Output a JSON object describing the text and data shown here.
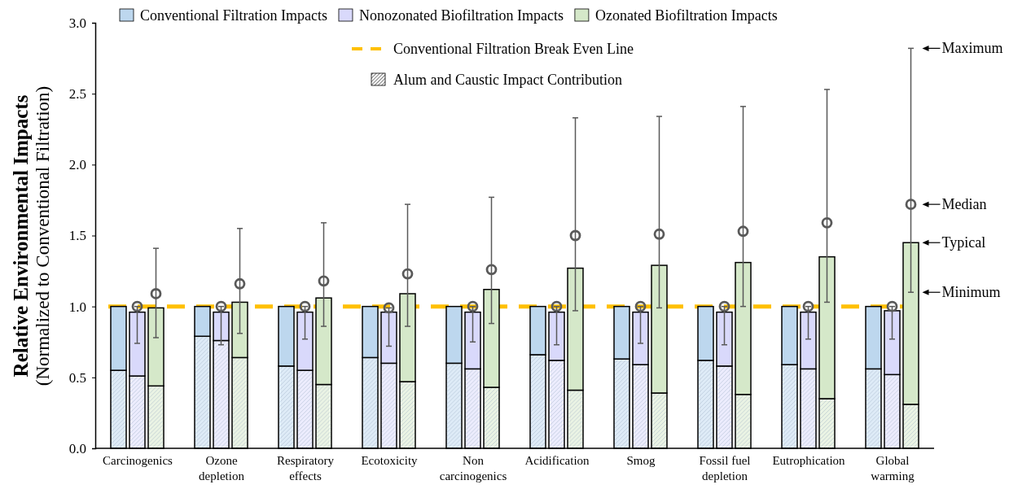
{
  "chart_data": {
    "type": "bar",
    "stacked": true,
    "ylabel": "Relative Environmental Impacts\n(Normalized to Conventional Filtration)",
    "categories": [
      null,
      "Carcinogenics",
      null,
      null,
      "Ozone depletion",
      null,
      null,
      "Respiratory effects",
      null,
      null,
      "Ecotoxicity",
      null,
      null,
      "Non carcinogenics",
      null,
      null,
      "Acidification",
      null,
      null,
      "Smog",
      null,
      null,
      "Fossil fuel depletion",
      null,
      null,
      "Eutrophication",
      null,
      null,
      "Global warming",
      null
    ],
    "ylim": [
      0,
      3
    ],
    "yticks": [
      {
        "value": 0,
        "label": "0.0"
      },
      {
        "value": 0.5,
        "label": "0.5"
      },
      {
        "value": 1,
        "label": "1.0"
      },
      {
        "value": 1.5,
        "label": "1.5"
      },
      {
        "value": 2,
        "label": "2.0"
      },
      {
        "value": 2.5,
        "label": "2.5"
      },
      {
        "value": 3,
        "label": "3.0"
      }
    ],
    "legend": "top",
    "series": [
      {
        "color": "#deebf7",
        "values": [
          0.55,
          null,
          null,
          0.79,
          null,
          null,
          0.58,
          null,
          null,
          0.64,
          null,
          null,
          0.6,
          null,
          null,
          0.66,
          null,
          null,
          0.63,
          null,
          null,
          0.62,
          null,
          null,
          0.59,
          null,
          null,
          0.56,
          null,
          null
        ]
      },
      {
        "name": "Conventional Filtration Impacts",
        "color": "#bdd7ee",
        "values": [
          0.45,
          null,
          null,
          0.21,
          null,
          null,
          0.42,
          null,
          null,
          0.36,
          null,
          null,
          0.4,
          null,
          null,
          0.34,
          null,
          null,
          0.37,
          null,
          null,
          0.38,
          null,
          null,
          0.41,
          null,
          null,
          0.44,
          null,
          null
        ]
      },
      {
        "color": "#ececfd",
        "values": [
          null,
          0.51,
          null,
          null,
          0.76,
          null,
          null,
          0.55,
          null,
          null,
          0.6,
          null,
          null,
          0.56,
          null,
          null,
          0.62,
          null,
          null,
          0.59,
          null,
          null,
          0.58,
          null,
          null,
          0.56,
          null,
          null,
          0.52,
          null
        ]
      },
      {
        "name": "Nonozonated Biofiltration Impacts",
        "color": "#d9d9fb",
        "values": [
          null,
          0.45,
          null,
          null,
          0.2,
          null,
          null,
          0.41,
          null,
          null,
          0.36,
          null,
          null,
          0.4,
          null,
          null,
          0.34,
          null,
          null,
          0.37,
          null,
          null,
          0.38,
          null,
          null,
          0.4,
          null,
          null,
          0.45,
          null
        ],
        "errors": [
          null,
          [
            0.74,
            1.0
          ],
          null,
          null,
          [
            0.73,
            1.0
          ],
          null,
          null,
          [
            0.77,
            1.0
          ],
          null,
          null,
          [
            0.72,
            0.99
          ],
          null,
          null,
          [
            0.75,
            1.0
          ],
          null,
          null,
          [
            0.73,
            1.0
          ],
          null,
          null,
          [
            0.74,
            1.0
          ],
          null,
          null,
          [
            0.73,
            1.0
          ],
          null,
          null,
          [
            0.77,
            1.0
          ],
          null,
          null,
          [
            0.77,
            1.0
          ],
          null
        ]
      },
      {
        "color": "#eaf3e4",
        "values": [
          null,
          null,
          0.44,
          null,
          null,
          0.64,
          null,
          null,
          0.45,
          null,
          null,
          0.47,
          null,
          null,
          0.43,
          null,
          null,
          0.41,
          null,
          null,
          0.39,
          null,
          null,
          0.38,
          null,
          null,
          0.35,
          null,
          null,
          0.31
        ]
      },
      {
        "name": "Ozonated Biofiltration Impacts",
        "color": "#d5e8c9",
        "values": [
          null,
          null,
          0.55,
          null,
          null,
          0.39,
          null,
          null,
          0.61,
          null,
          null,
          0.62,
          null,
          null,
          0.69,
          null,
          null,
          0.86,
          null,
          null,
          0.9,
          null,
          null,
          0.93,
          null,
          null,
          1.0,
          null,
          null,
          1.14
        ],
        "errors": [
          null,
          null,
          [
            0.78,
            1.41
          ],
          null,
          null,
          [
            0.81,
            1.55
          ],
          null,
          null,
          [
            0.86,
            1.59
          ],
          null,
          null,
          [
            0.86,
            1.72
          ],
          null,
          null,
          [
            0.88,
            1.77
          ],
          null,
          null,
          [
            0.97,
            2.33
          ],
          null,
          null,
          [
            0.99,
            2.34
          ],
          null,
          null,
          [
            1.0,
            2.41
          ],
          null,
          null,
          [
            1.03,
            2.53
          ],
          null,
          null,
          [
            1.1,
            2.82
          ]
        ]
      },
      {
        "type": "scatter",
        "marker": "circle",
        "color": "#595959",
        "values": [
          null,
          1.0,
          1.09,
          null,
          1.0,
          1.16,
          null,
          1.0,
          1.18,
          null,
          0.99,
          1.23,
          null,
          1.0,
          1.26,
          null,
          1.0,
          1.5,
          null,
          1.0,
          1.51,
          null,
          1.0,
          1.53,
          null,
          1.0,
          1.59,
          null,
          1.0,
          1.72
        ]
      }
    ],
    "ref_lines": [
      {
        "axis": "y",
        "value": 1,
        "label": "Conventional Filtration Break Even Line",
        "color": "#ffc000",
        "line_style": "dashed"
      }
    ],
    "annotations": [
      "Alum and Caustic Impact Contribution",
      "Maximum",
      "Median",
      "Typical",
      "Minimum"
    ]
  }
}
